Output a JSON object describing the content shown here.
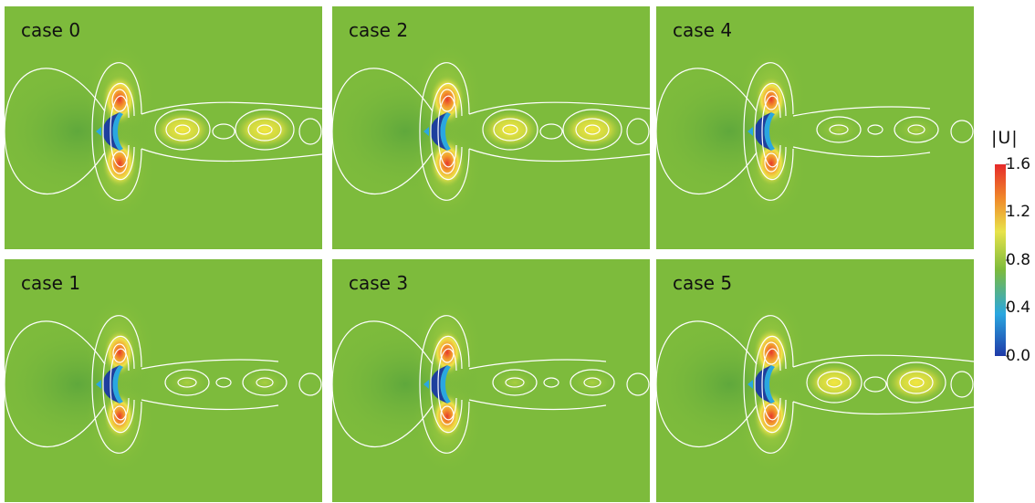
{
  "panels": [
    {
      "title": "case 0"
    },
    {
      "title": "case 2"
    },
    {
      "title": "case 4"
    },
    {
      "title": "case 1"
    },
    {
      "title": "case 3"
    },
    {
      "title": "case 5"
    }
  ],
  "colorbar": {
    "title": "|U|",
    "tick_labels": [
      "1.6",
      "1.2",
      "0.8",
      "0.4",
      "0.0"
    ],
    "min": 0.0,
    "max": 1.6,
    "colors": [
      "#1f3aa8",
      "#2aa7e0",
      "#7dbb3c",
      "#e8e34a",
      "#f08a2a",
      "#e62a2a"
    ]
  }
}
